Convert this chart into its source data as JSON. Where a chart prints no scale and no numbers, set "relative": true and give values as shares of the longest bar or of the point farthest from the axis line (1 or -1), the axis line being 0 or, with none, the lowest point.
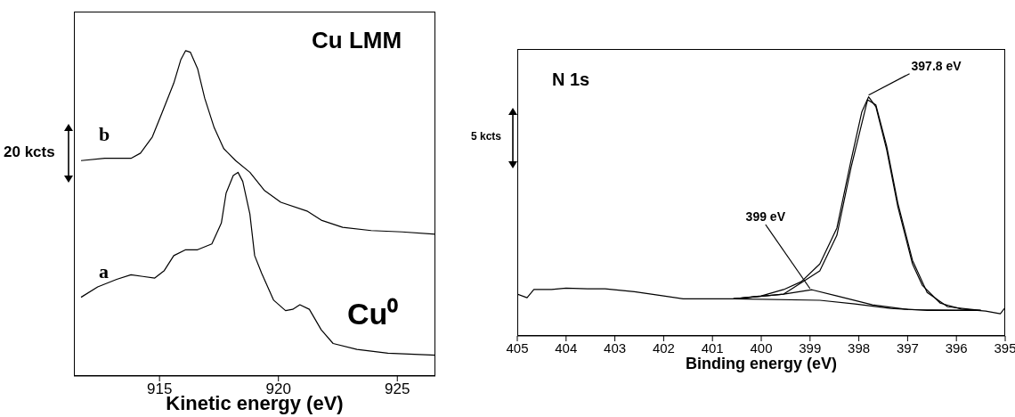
{
  "chart_data": [
    {
      "type": "line",
      "title": "Cu LMM",
      "xlabel": "Kinetic energy (eV)",
      "relative": true,
      "xlim": [
        911.4,
        926.6
      ],
      "xticks": [
        915,
        920,
        925
      ],
      "grid": false,
      "legend": false,
      "marker": "none",
      "line_style": "solid",
      "annotations": [
        "Cu⁰",
        "20 kcts"
      ],
      "series": [
        {
          "name": "b",
          "color": "#000000",
          "x": [
            911.7,
            912.7,
            913.8,
            914.2,
            914.7,
            915.1,
            915.6,
            915.9,
            916.1,
            916.3,
            916.6,
            916.9,
            917.3,
            917.7,
            918.2,
            918.8,
            919.4,
            920.1,
            921.2,
            921.8,
            922.7,
            923.9,
            925.2,
            926.6
          ],
          "values": [
            0.662,
            0.669,
            0.669,
            0.685,
            0.735,
            0.808,
            0.9,
            0.973,
            1.0,
            0.995,
            0.945,
            0.854,
            0.763,
            0.699,
            0.662,
            0.626,
            0.571,
            0.534,
            0.507,
            0.479,
            0.457,
            0.447,
            0.443,
            0.436
          ]
        },
        {
          "name": "a",
          "color": "#000000",
          "x": [
            911.7,
            912.4,
            913.2,
            913.8,
            914.3,
            914.8,
            915.2,
            915.6,
            916.1,
            916.6,
            917.2,
            917.6,
            917.8,
            918.1,
            918.3,
            918.5,
            918.8,
            919.0,
            919.3,
            919.8,
            920.3,
            920.6,
            920.9,
            921.3,
            921.8,
            922.3,
            923.3,
            924.6,
            926.6
          ],
          "values": [
            0.242,
            0.274,
            0.297,
            0.311,
            0.306,
            0.301,
            0.324,
            0.37,
            0.388,
            0.388,
            0.406,
            0.47,
            0.562,
            0.616,
            0.626,
            0.598,
            0.498,
            0.37,
            0.315,
            0.233,
            0.201,
            0.205,
            0.219,
            0.205,
            0.142,
            0.1,
            0.082,
            0.07,
            0.064
          ]
        }
      ]
    },
    {
      "type": "line",
      "title": "N 1s",
      "xlabel": "Binding energy (eV)",
      "relative": true,
      "xlim": [
        405,
        395
      ],
      "xticks": [
        405,
        404,
        403,
        402,
        401,
        400,
        399,
        398,
        397,
        396,
        395
      ],
      "grid": false,
      "legend": false,
      "marker": "none",
      "line_style": "solid",
      "annotations": [
        "5 kcts",
        {
          "text": "397.8 eV",
          "x": 397.8,
          "y": 1.0
        },
        {
          "text": "399 eV",
          "x": 399,
          "y": 0.19
        }
      ],
      "series": [
        {
          "color": "#000000",
          "x": [
            405.0,
            404.8,
            404.66,
            404.3,
            404.0,
            403.56,
            403.2,
            402.6,
            402.0,
            401.6,
            401.0,
            400.57,
            400.0,
            399.54,
            399.18,
            398.8,
            398.45,
            398.16,
            397.94,
            397.8,
            397.65,
            397.43,
            397.2,
            396.9,
            396.7,
            396.33,
            395.9,
            395.4,
            395.1,
            395.0
          ],
          "values": [
            0.175,
            0.16,
            0.194,
            0.194,
            0.2,
            0.197,
            0.197,
            0.185,
            0.167,
            0.155,
            0.155,
            0.155,
            0.167,
            0.194,
            0.227,
            0.301,
            0.451,
            0.734,
            0.936,
            1.0,
            0.958,
            0.779,
            0.54,
            0.301,
            0.212,
            0.137,
            0.112,
            0.104,
            0.093,
            0.119
          ]
        },
        {
          "color": "#000000",
          "x": [
            400.57,
            399.54,
            398.8,
            398.45,
            398.16,
            397.82,
            397.65,
            397.43,
            397.2,
            396.9,
            396.6,
            396.18,
            395.5
          ],
          "values": [
            0.155,
            0.175,
            0.272,
            0.421,
            0.704,
            0.988,
            0.966,
            0.794,
            0.555,
            0.316,
            0.182,
            0.122,
            0.107
          ]
        },
        {
          "color": "#000000",
          "x": [
            400.57,
            399.54,
            398.96,
            398.45,
            397.72,
            396.99,
            395.5
          ],
          "values": [
            0.155,
            0.175,
            0.193,
            0.167,
            0.13,
            0.11,
            0.107
          ]
        },
        {
          "color": "#000000",
          "x": [
            400.57,
            398.8,
            398.08,
            397.35,
            396.6,
            395.5
          ],
          "values": [
            0.155,
            0.149,
            0.134,
            0.115,
            0.107,
            0.107
          ]
        }
      ]
    }
  ]
}
